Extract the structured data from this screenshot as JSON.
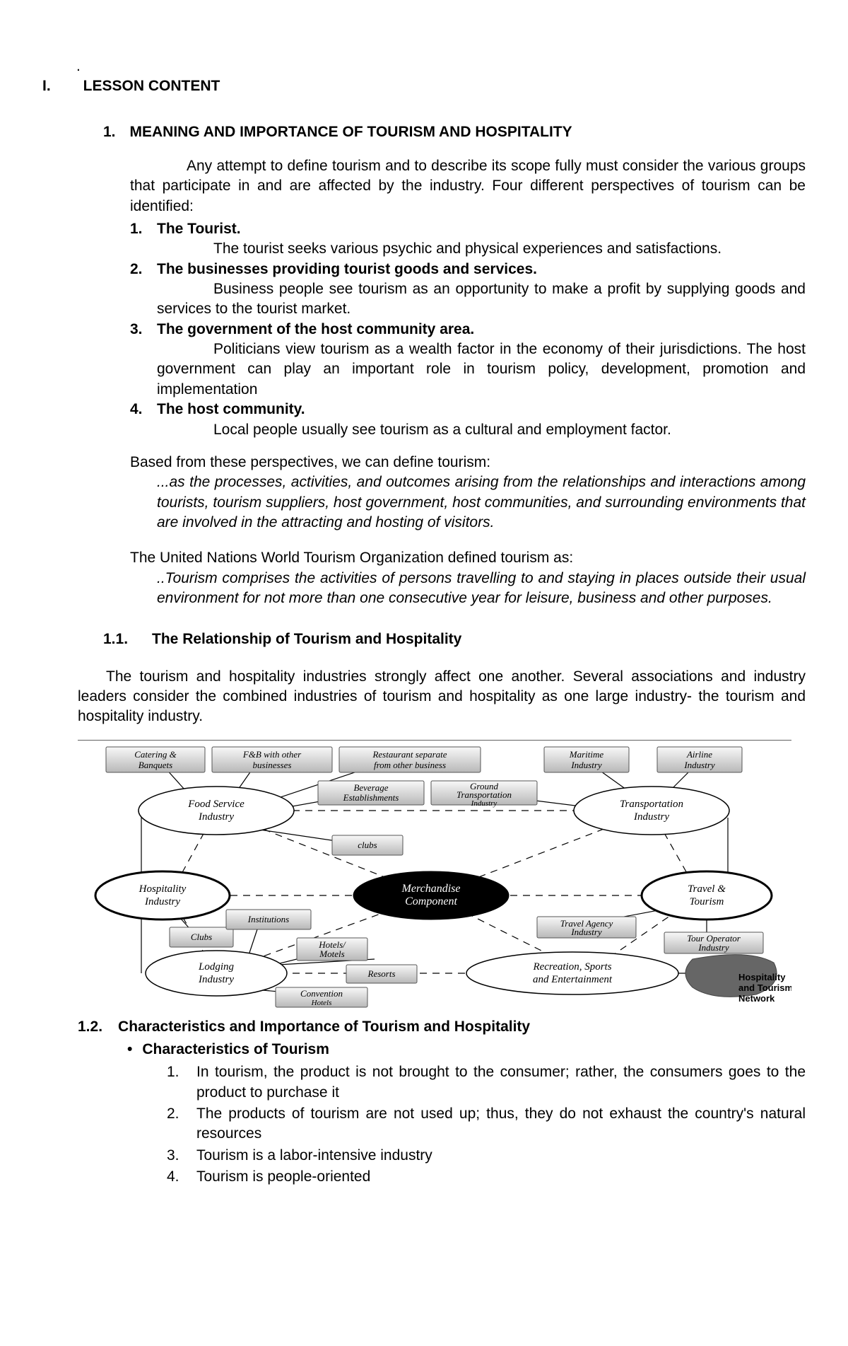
{
  "top_dot": ".",
  "roman": "I.",
  "lesson_content": "LESSON CONTENT",
  "sec1_num": "1.",
  "sec1_title": "MEANING AND IMPORTANCE OF TOURISM AND HOSPITALITY",
  "intro": "Any attempt to define tourism and to describe its scope fully must consider the various groups that participate in and are affected by the industry. Four different perspectives of tourism can be identified:",
  "persp": [
    {
      "n": "1.",
      "title": "The Tourist.",
      "body": "The tourist seeks various psychic and physical experiences and satisfactions."
    },
    {
      "n": "2.",
      "title": "The businesses providing tourist goods and services.",
      "body": "Business people see tourism as an opportunity to make a profit by supplying goods and services to the tourist market."
    },
    {
      "n": "3.",
      "title": "The government of the host community area.",
      "body": "Politicians view tourism as a wealth factor in the economy of their jurisdictions. The host government can play an important role in tourism policy, development, promotion and implementation"
    },
    {
      "n": "4.",
      "title": "The host community.",
      "body": "Local people usually see tourism as a cultural and employment factor."
    }
  ],
  "based_intro": "Based from these perspectives, we can define tourism:",
  "def1": "...as the processes, activities, and outcomes arising from the relationships and interactions among tourists, tourism suppliers, host government, host communities, and surrounding environments that are involved in the attracting and hosting of visitors.",
  "un_intro": "The United Nations World Tourism Organization defined tourism as:",
  "def2": "..Tourism comprises the activities of persons travelling to and staying in places outside their usual environment for not more than one consecutive year for leisure, business and other purposes.",
  "sec11_num": "1.1.",
  "sec11_title": "The Relationship of Tourism and Hospitality",
  "body11": "The tourism and hospitality industries strongly affect one another. Several associations and industry leaders consider the combined industries of tourism and hospitality as one large industry- the tourism and hospitality industry.",
  "sec12_num": "1.2.",
  "sec12_title": "Characteristics and Importance of Tourism and Hospitality",
  "bullet_char": "Characteristics of Tourism",
  "chars": [
    {
      "n": "1.",
      "t": "In tourism, the product is not brought to the consumer; rather, the consumers goes to the product to purchase it"
    },
    {
      "n": "2.",
      "t": "The products of tourism are not used up; thus, they do not exhaust the country's natural resources"
    },
    {
      "n": "3.",
      "t": "Tourism is a labor-intensive industry"
    },
    {
      "n": "4.",
      "t": "Tourism is people-oriented"
    }
  ],
  "diagram": {
    "center": "Merchandise Component",
    "hospitality": "Hospitality Industry",
    "travel": "Travel & Tourism",
    "food": "Food Service Industry",
    "transport": "Transportation Industry",
    "lodging": "Lodging Industry",
    "recreation": "Recreation, Sports and Entertainment",
    "catering": "Catering & Banquets",
    "fb_other": "F&B with other businesses",
    "rest_sep": "Restaurant separate from other business",
    "bev": "Beverage Establishments",
    "ground": "Ground Transportation Industry",
    "maritime": "Maritime Industry",
    "airline": "Airline Industry",
    "clubs_top": "clubs",
    "clubs_left": "Clubs",
    "institutions": "Institutions",
    "hotels": "Hotels/ Motels",
    "resorts": "Resorts",
    "convention": "Convention Hotels",
    "agency": "Travel Agency Industry",
    "operator": "Tour Operator Industry",
    "network1": "Hospitality",
    "network2": "and Tourism",
    "network3": "Network"
  }
}
